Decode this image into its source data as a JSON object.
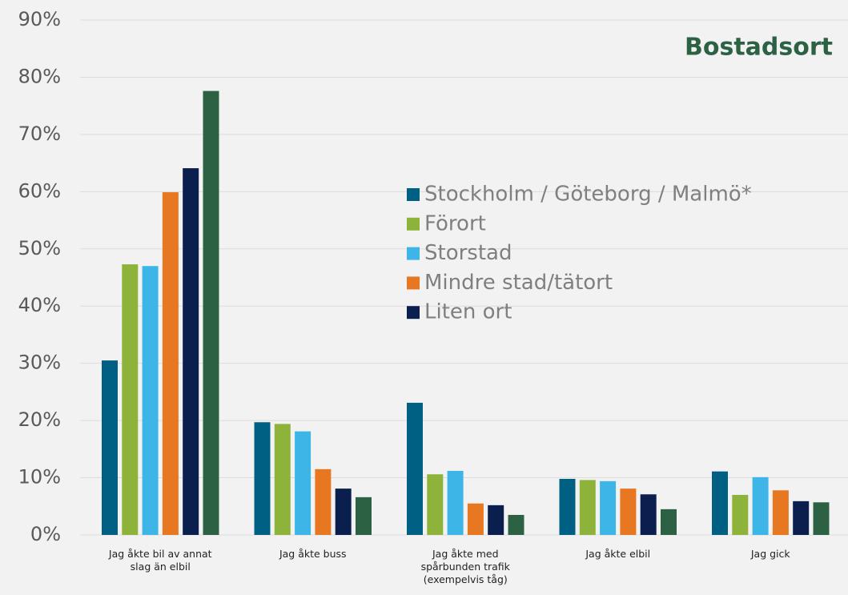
{
  "chart_data": {
    "type": "bar",
    "title": "Bostadsort",
    "categories": [
      "Jag åkte bil av annat slag än elbil",
      "Jag åkte buss",
      "Jag åkte med spårbunden trafik (exempelvis tåg)",
      "Jag åkte elbil",
      "Jag gick"
    ],
    "series": [
      {
        "name": "Stockholm / Göteborg / Malmö*",
        "color": "#006083",
        "values": [
          30.5,
          19.7,
          23.1,
          9.8,
          11.1
        ]
      },
      {
        "name": "Förort",
        "color": "#8db33a",
        "values": [
          47.3,
          19.4,
          10.6,
          9.6,
          7.0
        ]
      },
      {
        "name": "Storstad",
        "color": "#3db5e6",
        "values": [
          47.0,
          18.1,
          11.2,
          9.4,
          10.1
        ]
      },
      {
        "name": "Mindre stad/tätort",
        "color": "#e87722",
        "values": [
          59.9,
          11.5,
          5.5,
          8.1,
          7.8
        ]
      },
      {
        "name": "Liten ort",
        "color": "#0b1f4f",
        "values": [
          64.1,
          8.1,
          5.2,
          7.1,
          5.9
        ]
      },
      {
        "color": "#2c6144",
        "values": [
          77.6,
          6.6,
          3.5,
          4.5,
          5.7
        ]
      }
    ],
    "ylim": [
      0,
      90
    ],
    "yticks": [
      {
        "value": 0,
        "label": "0%"
      },
      {
        "value": 10,
        "label": "10%"
      },
      {
        "value": 20,
        "label": "20%"
      },
      {
        "value": 30,
        "label": "30%"
      },
      {
        "value": 40,
        "label": "40%"
      },
      {
        "value": 50,
        "label": "50%"
      },
      {
        "value": 60,
        "label": "60%"
      },
      {
        "value": 70,
        "label": "70%"
      },
      {
        "value": 80,
        "label": "80%"
      },
      {
        "value": 90,
        "label": "90%"
      }
    ],
    "grid": true
  }
}
